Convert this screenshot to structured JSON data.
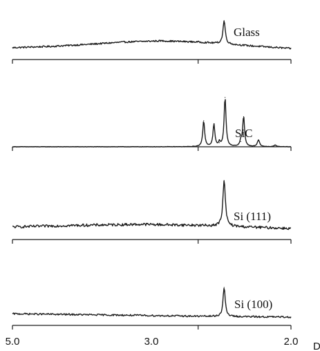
{
  "chart_data": {
    "type": "line",
    "xlabel": "D",
    "xlim": [
      5.0,
      2.0
    ],
    "ticks": [
      {
        "value": 5.0,
        "label": "5.0"
      },
      {
        "value": 3.0,
        "label": "3.0"
      },
      {
        "value": 2.0,
        "label": "2.0"
      }
    ],
    "series": [
      {
        "name": "Glass",
        "peaks": [
          {
            "x": 2.72,
            "height": 0.58,
            "width": 0.015
          }
        ],
        "baseline": [
          [
            5.0,
            0.02
          ],
          [
            4.6,
            0.05
          ],
          [
            4.2,
            0.1
          ],
          [
            3.8,
            0.16
          ],
          [
            3.4,
            0.19
          ],
          [
            3.0,
            0.16
          ],
          [
            2.7,
            0.11
          ],
          [
            2.4,
            0.06
          ],
          [
            2.0,
            0.0
          ]
        ],
        "noise": 0.02
      },
      {
        "name": "SiC",
        "peaks": [
          {
            "x": 2.94,
            "height": 0.5,
            "width": 0.012
          },
          {
            "x": 2.83,
            "height": 0.43,
            "width": 0.012
          },
          {
            "x": 2.77,
            "height": 0.08,
            "width": 0.01
          },
          {
            "x": 2.71,
            "height": 0.95,
            "width": 0.012
          },
          {
            "x": 2.54,
            "height": 0.1,
            "width": 0.012
          },
          {
            "x": 2.51,
            "height": 0.58,
            "width": 0.012
          },
          {
            "x": 2.35,
            "height": 0.13,
            "width": 0.014
          },
          {
            "x": 2.17,
            "height": 0.03,
            "width": 0.015
          }
        ],
        "baseline": [
          [
            5.0,
            0.0
          ],
          [
            2.0,
            0.0
          ]
        ],
        "noise": 0.004
      },
      {
        "name": "Si (111)",
        "peaks": [
          {
            "x": 2.72,
            "height": 0.88,
            "width": 0.016
          }
        ],
        "baseline": [
          [
            5.0,
            0.03
          ],
          [
            4.3,
            0.06
          ],
          [
            3.6,
            0.08
          ],
          [
            3.0,
            0.06
          ],
          [
            2.5,
            0.03
          ],
          [
            2.0,
            0.0
          ]
        ],
        "noise": 0.025
      },
      {
        "name": "Si (100)",
        "peaks": [
          {
            "x": 2.72,
            "height": 0.7,
            "width": 0.014
          }
        ],
        "baseline": [
          [
            5.0,
            0.08
          ],
          [
            4.3,
            0.06
          ],
          [
            3.6,
            0.04
          ],
          [
            3.0,
            0.02
          ],
          [
            2.5,
            0.01
          ],
          [
            2.0,
            0.0
          ]
        ],
        "noise": 0.02
      }
    ]
  }
}
